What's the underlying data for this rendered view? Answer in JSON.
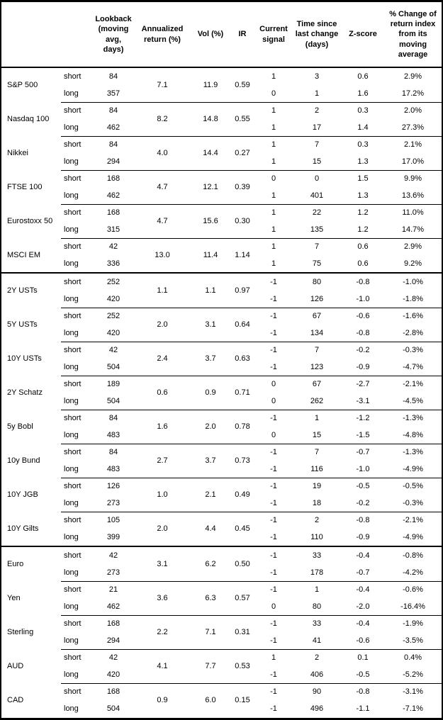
{
  "table": {
    "header": {
      "lookback": "Lookback (moving avg, days)",
      "annualized_return": "Annualized return (%)",
      "vol": "Vol (%)",
      "ir": "IR",
      "current_signal": "Current signal",
      "time_since": "Time since last change (days)",
      "z_score": "Z-score",
      "pct_change": "% Change of return index from its moving average"
    },
    "sections": [
      {
        "assets": [
          {
            "name": "S&P 500",
            "annualized_return": "7.1",
            "vol": "11.9",
            "ir": "0.59",
            "rows": [
              {
                "label": "short",
                "lookback": "84",
                "signal": "1",
                "time_since": "3",
                "z_score": "0.6",
                "pct_change": "2.9%"
              },
              {
                "label": "long",
                "lookback": "357",
                "signal": "0",
                "time_since": "1",
                "z_score": "1.6",
                "pct_change": "17.2%"
              }
            ]
          },
          {
            "name": "Nasdaq 100",
            "annualized_return": "8.2",
            "vol": "14.8",
            "ir": "0.55",
            "rows": [
              {
                "label": "short",
                "lookback": "84",
                "signal": "1",
                "time_since": "2",
                "z_score": "0.3",
                "pct_change": "2.0%"
              },
              {
                "label": "long",
                "lookback": "462",
                "signal": "1",
                "time_since": "17",
                "z_score": "1.4",
                "pct_change": "27.3%"
              }
            ]
          },
          {
            "name": "Nikkei",
            "annualized_return": "4.0",
            "vol": "14.4",
            "ir": "0.27",
            "rows": [
              {
                "label": "short",
                "lookback": "84",
                "signal": "1",
                "time_since": "7",
                "z_score": "0.3",
                "pct_change": "2.1%"
              },
              {
                "label": "long",
                "lookback": "294",
                "signal": "1",
                "time_since": "15",
                "z_score": "1.3",
                "pct_change": "17.0%"
              }
            ]
          },
          {
            "name": "FTSE 100",
            "annualized_return": "4.7",
            "vol": "12.1",
            "ir": "0.39",
            "rows": [
              {
                "label": "short",
                "lookback": "168",
                "signal": "0",
                "time_since": "0",
                "z_score": "1.5",
                "pct_change": "9.9%"
              },
              {
                "label": "long",
                "lookback": "462",
                "signal": "1",
                "time_since": "401",
                "z_score": "1.3",
                "pct_change": "13.6%"
              }
            ]
          },
          {
            "name": "Eurostoxx 50",
            "annualized_return": "4.7",
            "vol": "15.6",
            "ir": "0.30",
            "rows": [
              {
                "label": "short",
                "lookback": "168",
                "signal": "1",
                "time_since": "22",
                "z_score": "1.2",
                "pct_change": "11.0%"
              },
              {
                "label": "long",
                "lookback": "315",
                "signal": "1",
                "time_since": "135",
                "z_score": "1.2",
                "pct_change": "14.7%"
              }
            ]
          },
          {
            "name": "MSCI EM",
            "annualized_return": "13.0",
            "vol": "11.4",
            "ir": "1.14",
            "rows": [
              {
                "label": "short",
                "lookback": "42",
                "signal": "1",
                "time_since": "7",
                "z_score": "0.6",
                "pct_change": "2.9%"
              },
              {
                "label": "long",
                "lookback": "336",
                "signal": "1",
                "time_since": "75",
                "z_score": "0.6",
                "pct_change": "9.2%"
              }
            ]
          }
        ]
      },
      {
        "assets": [
          {
            "name": "2Y USTs",
            "annualized_return": "1.1",
            "vol": "1.1",
            "ir": "0.97",
            "rows": [
              {
                "label": "short",
                "lookback": "252",
                "signal": "-1",
                "time_since": "80",
                "z_score": "-0.8",
                "pct_change": "-1.0%"
              },
              {
                "label": "long",
                "lookback": "420",
                "signal": "-1",
                "time_since": "126",
                "z_score": "-1.0",
                "pct_change": "-1.8%"
              }
            ]
          },
          {
            "name": "5Y USTs",
            "annualized_return": "2.0",
            "vol": "3.1",
            "ir": "0.64",
            "rows": [
              {
                "label": "short",
                "lookback": "252",
                "signal": "-1",
                "time_since": "67",
                "z_score": "-0.6",
                "pct_change": "-1.6%"
              },
              {
                "label": "long",
                "lookback": "420",
                "signal": "-1",
                "time_since": "134",
                "z_score": "-0.8",
                "pct_change": "-2.8%"
              }
            ]
          },
          {
            "name": "10Y USTs",
            "annualized_return": "2.4",
            "vol": "3.7",
            "ir": "0.63",
            "rows": [
              {
                "label": "short",
                "lookback": "42",
                "signal": "-1",
                "time_since": "7",
                "z_score": "-0.2",
                "pct_change": "-0.3%"
              },
              {
                "label": "long",
                "lookback": "504",
                "signal": "-1",
                "time_since": "123",
                "z_score": "-0.9",
                "pct_change": "-4.7%"
              }
            ]
          },
          {
            "name": "2Y Schatz",
            "annualized_return": "0.6",
            "vol": "0.9",
            "ir": "0.71",
            "rows": [
              {
                "label": "short",
                "lookback": "189",
                "signal": "0",
                "time_since": "67",
                "z_score": "-2.7",
                "pct_change": "-2.1%"
              },
              {
                "label": "long",
                "lookback": "504",
                "signal": "0",
                "time_since": "262",
                "z_score": "-3.1",
                "pct_change": "-4.5%"
              }
            ]
          },
          {
            "name": "5y Bobl",
            "annualized_return": "1.6",
            "vol": "2.0",
            "ir": "0.78",
            "rows": [
              {
                "label": "short",
                "lookback": "84",
                "signal": "-1",
                "time_since": "1",
                "z_score": "-1.2",
                "pct_change": "-1.3%"
              },
              {
                "label": "long",
                "lookback": "483",
                "signal": "0",
                "time_since": "15",
                "z_score": "-1.5",
                "pct_change": "-4.8%"
              }
            ]
          },
          {
            "name": "10y Bund",
            "annualized_return": "2.7",
            "vol": "3.7",
            "ir": "0.73",
            "rows": [
              {
                "label": "short",
                "lookback": "84",
                "signal": "-1",
                "time_since": "7",
                "z_score": "-0.7",
                "pct_change": "-1.3%"
              },
              {
                "label": "long",
                "lookback": "483",
                "signal": "-1",
                "time_since": "116",
                "z_score": "-1.0",
                "pct_change": "-4.9%"
              }
            ]
          },
          {
            "name": "10Y JGB",
            "annualized_return": "1.0",
            "vol": "2.1",
            "ir": "0.49",
            "rows": [
              {
                "label": "short",
                "lookback": "126",
                "signal": "-1",
                "time_since": "19",
                "z_score": "-0.5",
                "pct_change": "-0.5%"
              },
              {
                "label": "long",
                "lookback": "273",
                "signal": "-1",
                "time_since": "18",
                "z_score": "-0.2",
                "pct_change": "-0.3%"
              }
            ]
          },
          {
            "name": "10Y Gilts",
            "annualized_return": "2.0",
            "vol": "4.4",
            "ir": "0.45",
            "rows": [
              {
                "label": "short",
                "lookback": "105",
                "signal": "-1",
                "time_since": "2",
                "z_score": "-0.8",
                "pct_change": "-2.1%"
              },
              {
                "label": "long",
                "lookback": "399",
                "signal": "-1",
                "time_since": "110",
                "z_score": "-0.9",
                "pct_change": "-4.9%"
              }
            ]
          }
        ]
      },
      {
        "assets": [
          {
            "name": "Euro",
            "annualized_return": "3.1",
            "vol": "6.2",
            "ir": "0.50",
            "rows": [
              {
                "label": "short",
                "lookback": "42",
                "signal": "-1",
                "time_since": "33",
                "z_score": "-0.4",
                "pct_change": "-0.8%"
              },
              {
                "label": "long",
                "lookback": "273",
                "signal": "-1",
                "time_since": "178",
                "z_score": "-0.7",
                "pct_change": "-4.2%"
              }
            ]
          },
          {
            "name": "Yen",
            "annualized_return": "3.6",
            "vol": "6.3",
            "ir": "0.57",
            "rows": [
              {
                "label": "short",
                "lookback": "21",
                "signal": "-1",
                "time_since": "1",
                "z_score": "-0.4",
                "pct_change": "-0.6%"
              },
              {
                "label": "long",
                "lookback": "462",
                "signal": "0",
                "time_since": "80",
                "z_score": "-2.0",
                "pct_change": "-16.4%"
              }
            ]
          },
          {
            "name": "Sterling",
            "annualized_return": "2.2",
            "vol": "7.1",
            "ir": "0.31",
            "rows": [
              {
                "label": "short",
                "lookback": "168",
                "signal": "-1",
                "time_since": "33",
                "z_score": "-0.4",
                "pct_change": "-1.9%"
              },
              {
                "label": "long",
                "lookback": "294",
                "signal": "-1",
                "time_since": "41",
                "z_score": "-0.6",
                "pct_change": "-3.5%"
              }
            ]
          },
          {
            "name": "AUD",
            "annualized_return": "4.1",
            "vol": "7.7",
            "ir": "0.53",
            "rows": [
              {
                "label": "short",
                "lookback": "42",
                "signal": "1",
                "time_since": "2",
                "z_score": "0.1",
                "pct_change": "0.4%"
              },
              {
                "label": "long",
                "lookback": "420",
                "signal": "-1",
                "time_since": "406",
                "z_score": "-0.5",
                "pct_change": "-5.2%"
              }
            ]
          },
          {
            "name": "CAD",
            "annualized_return": "0.9",
            "vol": "6.0",
            "ir": "0.15",
            "rows": [
              {
                "label": "short",
                "lookback": "168",
                "signal": "-1",
                "time_since": "90",
                "z_score": "-0.8",
                "pct_change": "-3.1%"
              },
              {
                "label": "long",
                "lookback": "504",
                "signal": "-1",
                "time_since": "496",
                "z_score": "-1.1",
                "pct_change": "-7.1%"
              }
            ]
          }
        ]
      }
    ]
  }
}
